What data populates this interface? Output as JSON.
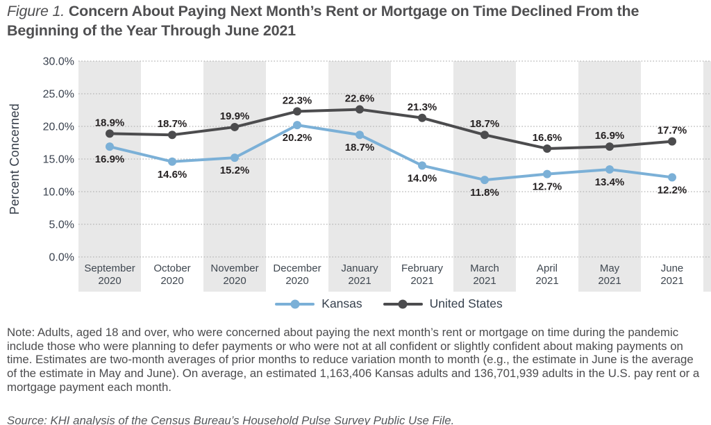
{
  "title": {
    "prefix": "Figure 1.",
    "text": "Concern About Paying Next Month’s Rent or Mortgage on Time Declined From the Beginning of the Year Through June 2021"
  },
  "chart_data": {
    "type": "line",
    "ylabel": "Percent Concerned",
    "ylim": [
      0,
      30
    ],
    "ytick_labels": [
      "0.0%",
      "5.0%",
      "10.0%",
      "15.0%",
      "20.0%",
      "25.0%",
      "30.0%"
    ],
    "grid": "horizontal-dotted",
    "plot_band_fill": "#e8e8e8",
    "gridline_color": "#b3b3b3",
    "axis_text_color": "#39414e",
    "value_label_color": "#231f20",
    "legend_position": "bottom-center",
    "categories": [
      {
        "month": "September",
        "year": "2020"
      },
      {
        "month": "October",
        "year": "2020"
      },
      {
        "month": "November",
        "year": "2020"
      },
      {
        "month": "December",
        "year": "2020"
      },
      {
        "month": "January",
        "year": "2021"
      },
      {
        "month": "February",
        "year": "2021"
      },
      {
        "month": "March",
        "year": "2021"
      },
      {
        "month": "April",
        "year": "2021"
      },
      {
        "month": "May",
        "year": "2021"
      },
      {
        "month": "June",
        "year": "2021"
      }
    ],
    "series": [
      {
        "name": "Kansas",
        "color": "#7bb0d7",
        "label_position": "below",
        "values": [
          16.9,
          14.6,
          15.2,
          20.2,
          18.7,
          14.0,
          11.8,
          12.7,
          13.4,
          12.2
        ]
      },
      {
        "name": "United States",
        "color": "#4c4c4e",
        "label_position": "above",
        "values": [
          18.9,
          18.7,
          19.9,
          22.3,
          22.6,
          21.3,
          18.7,
          16.6,
          16.9,
          17.7
        ]
      }
    ]
  },
  "note": "Note: Adults, aged 18 and over,  who were concerned about paying the next month’s rent or mortgage on time during the pandemic include those who were planning to defer payments or who were not at all confident or slightly confident about making payments on time. Estimates are two-month averages of prior months to reduce variation month to month (e.g., the estimate in June is the average of the estimate in May and June). On average, an estimated 1,163,406 Kansas adults and 136,701,939 adults in the U.S. pay rent or a mortgage payment each month.",
  "source": "Source: KHI analysis of the Census Bureau’s Household Pulse Survey Public Use File."
}
